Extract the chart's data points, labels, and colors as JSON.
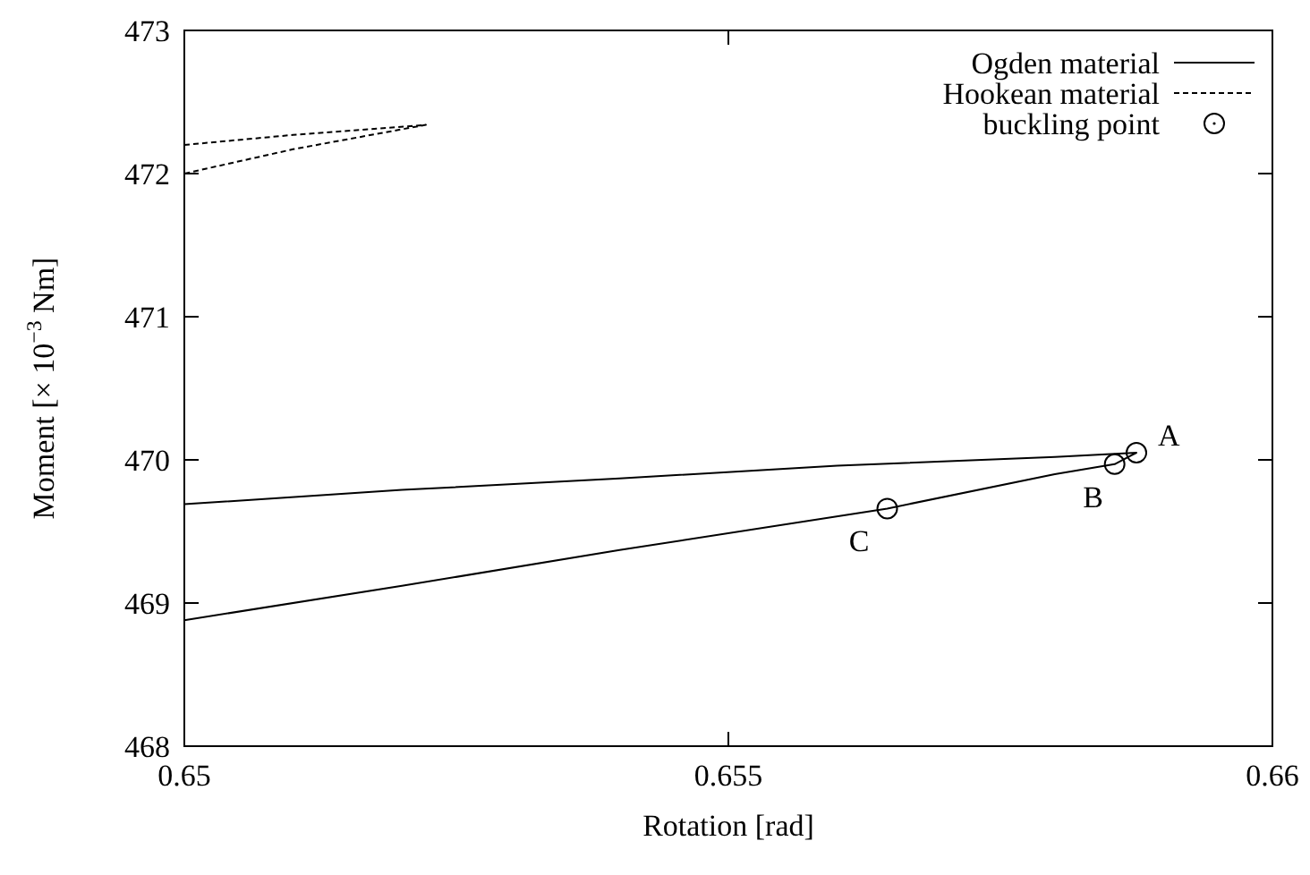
{
  "chart_data": {
    "type": "line",
    "xlabel": "Rotation [rad]",
    "ylabel": "Moment [× 10$^{−3}$ Nm]",
    "xlim": [
      0.65,
      0.66
    ],
    "xticks": [
      0.65,
      0.655,
      0.66
    ],
    "ylim": [
      468,
      473
    ],
    "yticks": [
      468,
      469,
      470,
      471,
      472,
      473
    ],
    "grid": false,
    "legend": "top right",
    "series": [
      {
        "name": "Ogden material",
        "color": "#000000",
        "line_style": "solid",
        "marker": "none",
        "x": [
          0.65,
          0.652,
          0.654,
          0.656,
          0.658,
          0.65875,
          0.65855,
          0.658,
          0.65646,
          0.654,
          0.652,
          0.65
        ],
        "values": [
          469.69,
          469.79,
          469.87,
          469.96,
          470.02,
          470.05,
          469.97,
          469.9,
          469.66,
          469.37,
          469.12,
          468.88
        ]
      },
      {
        "name": "Hookean material",
        "color": "#000000",
        "line_style": "dashed",
        "marker": "none",
        "x": [
          0.65,
          0.651,
          0.65222,
          0.651,
          0.65
        ],
        "values": [
          472.2,
          472.27,
          472.34,
          472.17,
          472.0
        ]
      },
      {
        "name": "buckling point",
        "type": "scatter",
        "color": "#000000",
        "marker": "circle",
        "x": [
          0.65875,
          0.65855,
          0.65646
        ],
        "values": [
          470.05,
          469.97,
          469.66
        ]
      }
    ],
    "annotations": [
      {
        "text": "A",
        "x": 0.65875,
        "y": 470.05
      },
      {
        "text": "B",
        "x": 0.65855,
        "y": 469.97
      },
      {
        "text": "C",
        "x": 0.65646,
        "y": 469.66
      }
    ]
  }
}
